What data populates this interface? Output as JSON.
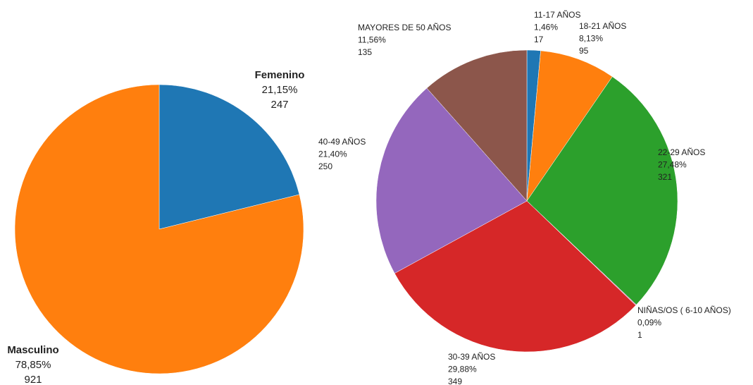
{
  "chart_data": [
    {
      "type": "pie",
      "categories": [
        "Femenino",
        "Masculino"
      ],
      "values": [
        21.15,
        78.85
      ],
      "value_labels": [
        "21,15%",
        "78,85%"
      ],
      "counts": [
        247,
        921
      ],
      "colors": [
        "#1f77b4",
        "#ff7f0e"
      ]
    },
    {
      "type": "pie",
      "categories": [
        "11-17 AÑOS",
        "18-21 AÑOS",
        "22-29 AÑOS",
        "NIÑAS/OS ( 6-10 AÑOS)",
        "30-39 AÑOS",
        "40-49 AÑOS",
        "MAYORES DE 50 AÑOS"
      ],
      "values": [
        1.46,
        8.13,
        27.48,
        0.09,
        29.88,
        21.4,
        11.56
      ],
      "value_labels": [
        "1,46%",
        "8,13%",
        "27,48%",
        "0,09%",
        "29,88%",
        "21,40%",
        "11,56%"
      ],
      "counts": [
        17,
        95,
        321,
        1,
        349,
        250,
        135
      ],
      "colors": [
        "#1f77b4",
        "#ff7f0e",
        "#2ca02c",
        "#e377c2",
        "#d62728",
        "#9467bd",
        "#8c564b"
      ]
    }
  ]
}
